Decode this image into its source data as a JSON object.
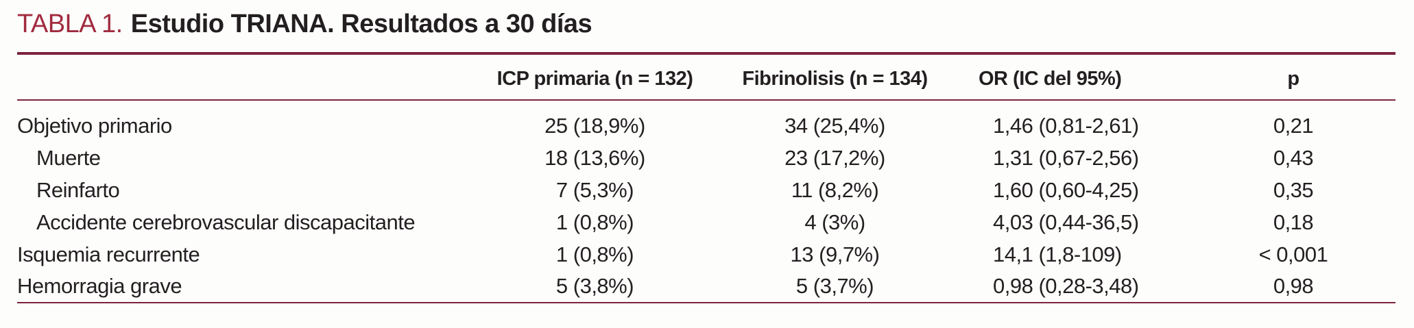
{
  "figure": {
    "title_label": "TABLA 1.",
    "title_text": "Estudio TRIANA. Resultados a 30 días"
  },
  "colors": {
    "accent_red": "#a12b3e",
    "rule_maroon": "#7c2340",
    "text": "#231f20",
    "background": "#fdfdfc"
  },
  "table": {
    "columns": {
      "label": "",
      "icp": "ICP primaria (n = 132)",
      "fib": "Fibrinolisis (n = 134)",
      "or": "OR (IC del 95%)",
      "p": "p"
    },
    "rows": [
      {
        "label": "Objetivo primario",
        "indent": false,
        "icp": "25 (18,9%)",
        "fib": "34 (25,4%)",
        "or": "1,46 (0,81-2,61)",
        "p": "0,21"
      },
      {
        "label": "Muerte",
        "indent": true,
        "icp": "18 (13,6%)",
        "fib": "23 (17,2%)",
        "or": "1,31 (0,67-2,56)",
        "p": "0,43"
      },
      {
        "label": "Reinfarto",
        "indent": true,
        "icp": "7 (5,3%)",
        "fib": "11 (8,2%)",
        "or": "1,60 (0,60-4,25)",
        "p": "0,35"
      },
      {
        "label": "Accidente cerebrovascular discapacitante",
        "indent": true,
        "icp": "1 (0,8%)",
        "fib": "4 (3%)",
        "or": "4,03 (0,44-36,5)",
        "p": "0,18"
      },
      {
        "label": "Isquemia recurrente",
        "indent": false,
        "icp": "1 (0,8%)",
        "fib": "13 (9,7%)",
        "or": "14,1 (1,8-109)",
        "p": "< 0,001"
      },
      {
        "label": "Hemorragia grave",
        "indent": false,
        "icp": "5 (3,8%)",
        "fib": "5 (3,7%)",
        "or": "0,98 (0,28-3,48)",
        "p": "0,98"
      }
    ]
  }
}
